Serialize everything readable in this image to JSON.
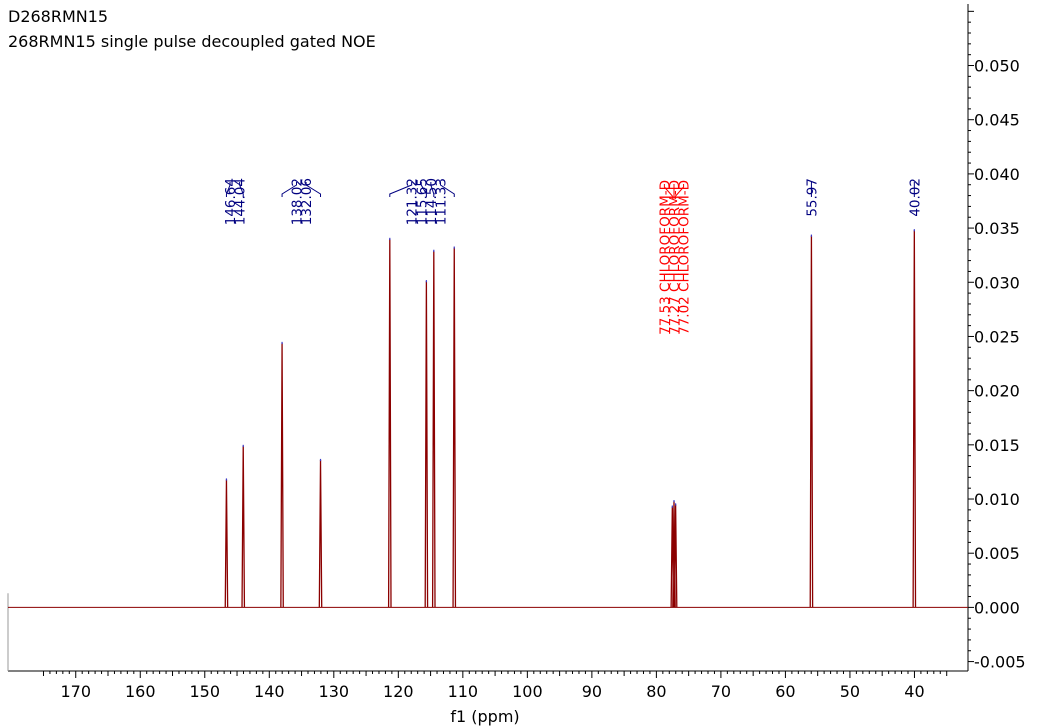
{
  "chart_data": {
    "type": "line",
    "title": "D268RMN15",
    "subtitle": "268RMN15 single pulse decoupled gated NOE",
    "xlabel": "f1 (ppm)",
    "ylabel": "",
    "xlim": [
      180.5,
      31.7
    ],
    "ylim": [
      -0.0055,
      0.0554
    ],
    "x_reversed": true,
    "x_ticks": [
      170,
      160,
      150,
      140,
      130,
      120,
      110,
      100,
      90,
      80,
      70,
      60,
      50,
      40
    ],
    "y_ticks": [
      {
        "value": -0.005,
        "label": "-0.005"
      },
      {
        "value": 0.0,
        "label": "0.000"
      },
      {
        "value": 0.005,
        "label": "0.005"
      },
      {
        "value": 0.01,
        "label": "0.010"
      },
      {
        "value": 0.015,
        "label": "0.015"
      },
      {
        "value": 0.02,
        "label": "0.020"
      },
      {
        "value": 0.025,
        "label": "0.025"
      },
      {
        "value": 0.03,
        "label": "0.030"
      },
      {
        "value": 0.035,
        "label": "0.035"
      },
      {
        "value": 0.04,
        "label": "0.040"
      },
      {
        "value": 0.045,
        "label": "0.045"
      },
      {
        "value": 0.05,
        "label": "0.050"
      }
    ],
    "grid": false,
    "series": [
      {
        "color": "#8b0000",
        "peaks": [
          {
            "x": 146.64,
            "y": 0.0118
          },
          {
            "x": 144.04,
            "y": 0.0149
          },
          {
            "x": 138.02,
            "y": 0.0244
          },
          {
            "x": 132.06,
            "y": 0.0136
          },
          {
            "x": 121.32,
            "y": 0.034
          },
          {
            "x": 115.65,
            "y": 0.0301
          },
          {
            "x": 114.5,
            "y": 0.0329
          },
          {
            "x": 111.33,
            "y": 0.0332
          },
          {
            "x": 77.53,
            "y": 0.0093
          },
          {
            "x": 77.27,
            "y": 0.0098
          },
          {
            "x": 77.02,
            "y": 0.0095
          },
          {
            "x": 55.97,
            "y": 0.0343
          },
          {
            "x": 40.02,
            "y": 0.0348
          }
        ]
      }
    ],
    "peak_labels": [
      {
        "text": "146.64",
        "x": 146.64,
        "color": "#000080"
      },
      {
        "text": "144.04",
        "x": 144.04,
        "color": "#000080"
      },
      {
        "text": "138.02",
        "x": 138.02,
        "color": "#000080"
      },
      {
        "text": "132.06",
        "x": 132.06,
        "color": "#000080"
      },
      {
        "text": "121.32",
        "x": 121.32,
        "color": "#000080"
      },
      {
        "text": "115.65",
        "x": 115.65,
        "color": "#000080"
      },
      {
        "text": "114.50",
        "x": 114.5,
        "color": "#000080"
      },
      {
        "text": "111.33",
        "x": 111.33,
        "color": "#000080"
      },
      {
        "text": "77.53 CHLOROFORM-D",
        "x": 77.53,
        "color": "#ff0000"
      },
      {
        "text": "77.27 CHLOROFORM-D",
        "x": 77.27,
        "color": "#ff0000"
      },
      {
        "text": "77.02 CHLOROFORM-D",
        "x": 77.02,
        "color": "#ff0000"
      },
      {
        "text": "55.97",
        "x": 55.97,
        "color": "#000080"
      },
      {
        "text": "40.02",
        "x": 40.02,
        "color": "#000080"
      }
    ]
  }
}
